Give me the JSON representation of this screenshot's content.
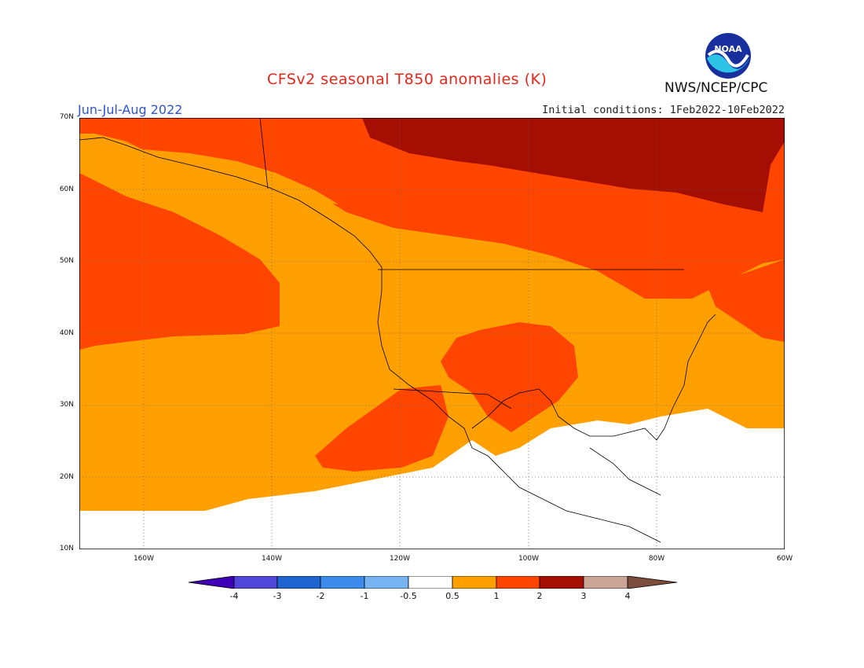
{
  "header": {
    "title": "CFSv2 seasonal T850 anomalies (K)",
    "season": "Jun-Jul-Aug 2022",
    "initial_conditions": "Initial conditions: 1Feb2022-10Feb2022",
    "agency": "NWS/NCEP/CPC",
    "logo_text": "NOAA",
    "logo_icon": "noaa-logo-icon"
  },
  "map": {
    "projection": "lat-lon",
    "lat_range": [
      10,
      70
    ],
    "lon_range": [
      -170,
      -60
    ],
    "lat_labels": [
      "70N",
      "60N",
      "50N",
      "40N",
      "30N",
      "20N",
      "10N"
    ],
    "lon_labels": [
      "160W",
      "140W",
      "120W",
      "100W",
      "80W",
      "60W"
    ],
    "grid": "dotted",
    "anomaly_regions": [
      {
        "category": "0.5 to 1",
        "color": "#ff9f00",
        "description": "background warm anomaly over most of domain"
      },
      {
        "category": "1 to 2",
        "color": "#ff4500",
        "description": "northern Pacific, Canada, southwestern US, eastern Canada, subtropical Pacific"
      },
      {
        "category": "2 to 3",
        "color": "#a50e02",
        "description": "northern Canada / Arctic archipelago"
      },
      {
        "category": "-0.5 to 0.5",
        "color": "#ffffff",
        "description": "Gulf of Mexico, Caribbean, tropical eastern Pacific"
      }
    ]
  },
  "colorbar": {
    "labels": [
      "-4",
      "-3",
      "-2",
      "-1",
      "-0.5",
      "0.5",
      "1",
      "2",
      "3",
      "4"
    ],
    "colors": [
      "#3f00b8",
      "#5046d8",
      "#1f64d0",
      "#3d8cec",
      "#76b4f4",
      "#ffffff",
      "#ff9f00",
      "#ff4500",
      "#a50e02",
      "#cba596",
      "#7b4b3c"
    ]
  }
}
